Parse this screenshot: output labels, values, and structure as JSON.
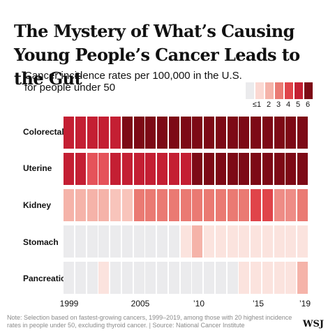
{
  "headline": "The Mystery of What’s Causing Young People’s Cancer Leads to the Gut",
  "subtitle": "Cancer incidence rates per 100,000 in the U.S. for people under 50",
  "legend": {
    "labels": [
      "≤1",
      "2",
      "3",
      "4",
      "5",
      "6"
    ],
    "colors": [
      "#ebebed",
      "#fbd8d2",
      "#f5b3a9",
      "#ea7a73",
      "#e0444a",
      "#c41f33",
      "#7d0a16"
    ]
  },
  "footnote": "Note: Selection based on fastest-growing cancers, 1999–2019, among those with 20 highest incidence rates in people under 50, excluding thyroid cancer. | Source: National Cancer Institute",
  "logo": "WSJ",
  "chart_data": {
    "type": "heatmap",
    "title": "Cancer incidence rates per 100,000 in the U.S. for people under 50",
    "x_tick_labels": [
      "1999",
      "2005",
      "’10",
      "’15",
      "’19"
    ],
    "x": [
      1999,
      2000,
      2001,
      2002,
      2003,
      2004,
      2005,
      2006,
      2007,
      2008,
      2009,
      2010,
      2011,
      2012,
      2013,
      2014,
      2015,
      2016,
      2017,
      2018,
      2019
    ],
    "rows": [
      "Colorectal",
      "Uterine",
      "Kidney",
      "Stomach",
      "Pancreatic"
    ],
    "levels": [
      [
        5,
        5,
        5,
        5,
        5,
        6,
        6,
        6,
        6,
        6,
        6,
        6,
        6,
        6,
        6,
        6,
        6,
        6,
        6,
        6,
        6
      ],
      [
        5,
        5,
        4.5,
        4.5,
        5,
        5,
        5,
        5,
        5,
        5,
        5,
        6,
        6,
        6,
        6,
        6,
        6,
        6,
        6,
        6,
        6
      ],
      [
        2,
        2,
        2,
        2,
        2.5,
        2.5,
        3,
        3,
        3,
        3,
        3,
        3,
        3,
        3,
        3,
        3,
        4,
        4,
        3.5,
        3.5,
        3
      ],
      [
        1,
        1,
        1,
        1,
        1,
        1,
        1,
        1,
        1,
        1,
        1.5,
        2,
        1.5,
        1.5,
        1.5,
        1.5,
        1.5,
        1.5,
        1.5,
        1.5,
        1.5
      ],
      [
        1,
        1,
        1,
        1.5,
        1,
        1,
        1,
        1,
        1,
        1,
        1,
        1,
        1,
        1,
        1,
        1.5,
        1.5,
        1.5,
        1.5,
        1.5,
        2
      ]
    ]
  }
}
